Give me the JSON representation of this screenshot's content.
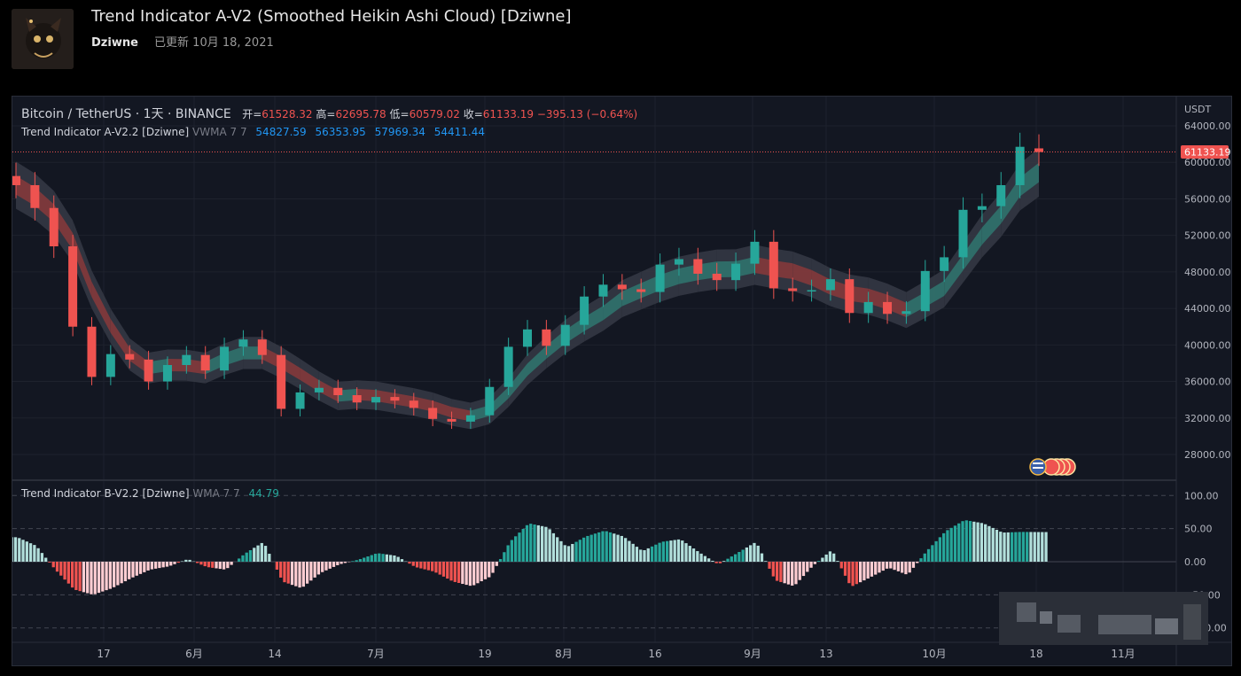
{
  "header": {
    "title": "Trend Indicator A-V2 (Smoothed Heikin Ashi Cloud) [Dziwne]",
    "author": "Dziwne",
    "updated": "已更新 10月 18, 2021"
  },
  "legend": {
    "symbol": "Bitcoin / TetherUS · 1天 · BINANCE",
    "open_label": "开=",
    "open": "61528.32",
    "high_label": "高=",
    "high": "62695.78",
    "low_label": "低=",
    "low": "60579.02",
    "close_label": "收=",
    "close": "61133.19",
    "change": "−395.13 (−0.64%)"
  },
  "indicator_a": {
    "name": "Trend Indicator A-V2.2 [Dziwne]",
    "params": "VWMA 7 7",
    "values": [
      "54827.59",
      "56353.95",
      "57969.34",
      "54411.44"
    ]
  },
  "indicator_b": {
    "name": "Trend Indicator B-V2.2 [Dziwne]",
    "params": "WMA 7 7",
    "value": "44.79"
  },
  "price_axis": {
    "currency": "USDT",
    "ticks": [
      "64000.00",
      "60000.00",
      "56000.00",
      "52000.00",
      "48000.00",
      "44000.00",
      "40000.00",
      "36000.00",
      "32000.00",
      "28000.00"
    ],
    "last_price": "61133.19"
  },
  "osc_axis": {
    "ticks": [
      "100.00",
      "50.00",
      "0.00",
      "−50.00",
      "−100.00"
    ]
  },
  "time_axis": {
    "labels": [
      "17",
      "6月",
      "14",
      "7月",
      "19",
      "8月",
      "16",
      "9月",
      "13",
      "10月",
      "18",
      "11月"
    ]
  },
  "colors": {
    "up": "#26a69a",
    "down": "#ef5350",
    "up_light": "#b2dfdb",
    "down_light": "#ffcdd2",
    "background": "#131722"
  },
  "chart_data": [
    {
      "type": "candlestick",
      "title": "Bitcoin / TetherUS · 1天 · BINANCE",
      "ylabel": "USDT",
      "ylim": [
        26000,
        66000
      ],
      "x": [
        "05-10",
        "05-13",
        "05-16",
        "05-19",
        "05-22",
        "05-25",
        "05-28",
        "05-31",
        "06-03",
        "06-06",
        "06-09",
        "06-12",
        "06-15",
        "06-18",
        "06-21",
        "06-24",
        "06-27",
        "06-30",
        "07-03",
        "07-06",
        "07-09",
        "07-12",
        "07-15",
        "07-18",
        "07-21",
        "07-24",
        "07-27",
        "07-30",
        "08-02",
        "08-05",
        "08-08",
        "08-11",
        "08-14",
        "08-17",
        "08-20",
        "08-23",
        "08-26",
        "08-29",
        "09-01",
        "09-04",
        "09-07",
        "09-10",
        "09-13",
        "09-16",
        "09-19",
        "09-22",
        "09-25",
        "09-28",
        "10-01",
        "10-04",
        "10-07",
        "10-10",
        "10-13",
        "10-16",
        "10-18"
      ],
      "close": [
        57500,
        55000,
        50800,
        42000,
        36500,
        39000,
        38400,
        36000,
        37800,
        38900,
        37200,
        39800,
        40600,
        38900,
        33000,
        34800,
        35300,
        34500,
        33700,
        34300,
        33900,
        33100,
        31900,
        31600,
        32300,
        35400,
        39800,
        41700,
        39900,
        42200,
        45300,
        46600,
        46100,
        45800,
        48800,
        49400,
        47800,
        47100,
        48900,
        51300,
        46200,
        45900,
        46000,
        47200,
        43500,
        44700,
        43400,
        43700,
        48100,
        49600,
        54800,
        55200,
        57500,
        61700,
        61133
      ],
      "open": [
        58500,
        57500,
        55000,
        50800,
        42000,
        36500,
        39000,
        38400,
        36000,
        37800,
        38900,
        37200,
        39800,
        40600,
        38900,
        33000,
        34800,
        35300,
        34500,
        33700,
        34300,
        33900,
        33100,
        31900,
        31600,
        32300,
        35400,
        39800,
        41700,
        39900,
        42200,
        45300,
        46600,
        46100,
        45800,
        48800,
        49400,
        47800,
        47100,
        48900,
        51300,
        46200,
        45900,
        46000,
        47200,
        43500,
        44700,
        43400,
        43700,
        48100,
        49600,
        54800,
        55200,
        57500,
        61528
      ]
    },
    {
      "type": "bar",
      "title": "Trend Indicator B-V2.2 [Dziwne]",
      "ylim": [
        -110,
        110
      ],
      "x": [
        "05-10",
        "05-13",
        "05-16",
        "05-19",
        "05-22",
        "05-25",
        "05-28",
        "05-31",
        "06-03",
        "06-06",
        "06-09",
        "06-12",
        "06-15",
        "06-18",
        "06-21",
        "06-24",
        "06-27",
        "06-30",
        "07-03",
        "07-06",
        "07-09",
        "07-12",
        "07-15",
        "07-18",
        "07-21",
        "07-24",
        "07-27",
        "07-30",
        "08-02",
        "08-05",
        "08-08",
        "08-11",
        "08-14",
        "08-17",
        "08-20",
        "08-23",
        "08-26",
        "08-29",
        "09-01",
        "09-04",
        "09-07",
        "09-10",
        "09-13",
        "09-16",
        "09-19",
        "09-22",
        "09-25",
        "09-28",
        "10-01",
        "10-04",
        "10-07",
        "10-10",
        "10-13",
        "10-16",
        "10-18"
      ],
      "values": [
        37,
        24,
        -12,
        -42,
        -50,
        -40,
        -25,
        -12,
        -7,
        4,
        -8,
        -12,
        12,
        30,
        -30,
        -40,
        -17,
        -4,
        3,
        13,
        9,
        -8,
        -15,
        -30,
        -37,
        -22,
        30,
        58,
        52,
        22,
        38,
        47,
        38,
        16,
        30,
        34,
        14,
        -4,
        13,
        30,
        -28,
        -37,
        -6,
        18,
        -38,
        -24,
        -9,
        -20,
        16,
        46,
        63,
        58,
        44,
        45,
        44.79
      ]
    }
  ]
}
